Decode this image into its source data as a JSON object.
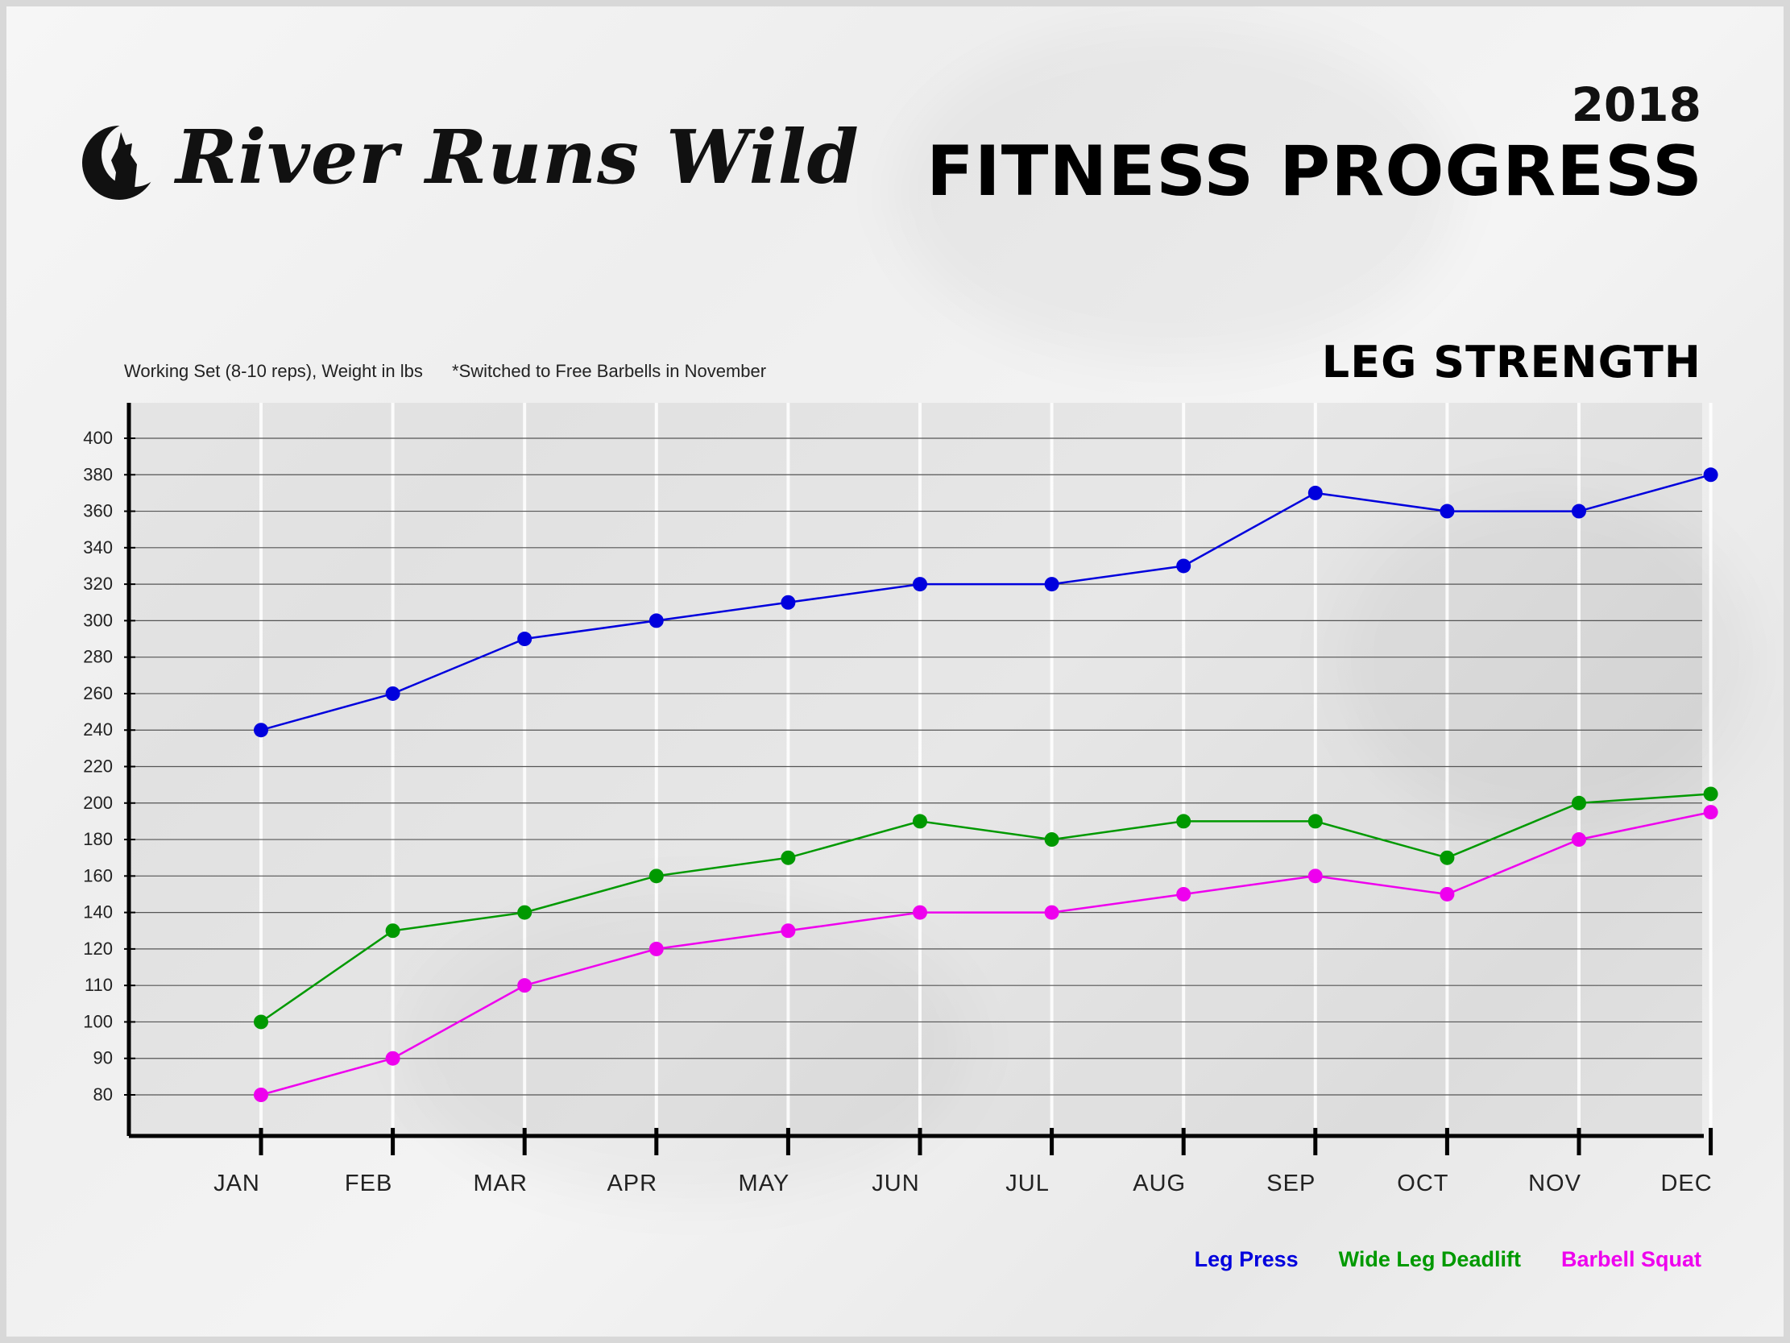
{
  "brand": {
    "name": "River Runs Wild"
  },
  "header": {
    "year": "2018",
    "title": "FITNESS PROGRESS"
  },
  "chart_section": {
    "title": "LEG STRENGTH",
    "subtitle_left": "Working Set (8-10 reps), Weight in lbs",
    "subtitle_right": "*Switched to Free Barbells in November"
  },
  "chart_data": {
    "type": "line",
    "title": "LEG STRENGTH",
    "xlabel": "",
    "ylabel": "",
    "categories": [
      "JAN",
      "FEB",
      "MAR",
      "APR",
      "MAY",
      "JUN",
      "JUL",
      "AUG",
      "SEP",
      "OCT",
      "NOV",
      "DEC"
    ],
    "y_ticks": [
      "400",
      "380",
      "360",
      "340",
      "320",
      "300",
      "280",
      "260",
      "240",
      "220",
      "200",
      "180",
      "160",
      "140",
      "120",
      "110",
      "100",
      "90",
      "80"
    ],
    "grid": true,
    "legend_position": "bottom-right",
    "series": [
      {
        "name": "Leg Press",
        "color": "#0000dd",
        "values": [
          240,
          260,
          290,
          300,
          310,
          320,
          320,
          330,
          370,
          360,
          360,
          380
        ]
      },
      {
        "name": "Wide Leg Deadlift",
        "color": "#009900",
        "values": [
          100,
          130,
          140,
          160,
          170,
          190,
          180,
          190,
          190,
          170,
          200,
          205
        ]
      },
      {
        "name": "Barbell Squat",
        "color": "#ee00ee",
        "values": [
          80,
          90,
          110,
          120,
          130,
          140,
          140,
          150,
          160,
          150,
          180,
          195
        ]
      }
    ]
  }
}
